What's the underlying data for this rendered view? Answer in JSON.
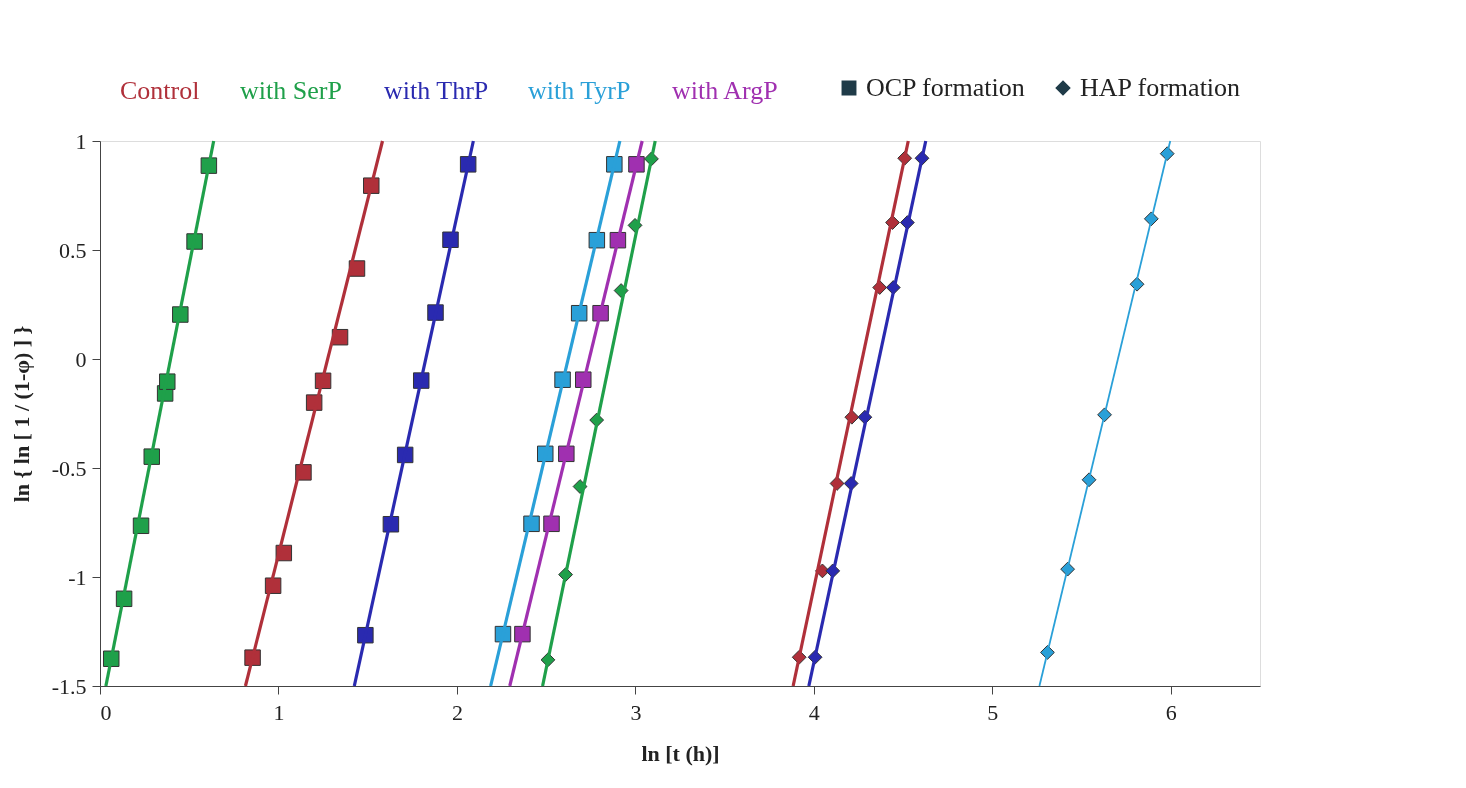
{
  "chart_data": {
    "type": "scatter",
    "xlabel": "ln [t (h)]",
    "ylabel": "ln { ln [ 1 / (1-φ) ] }",
    "xlim": [
      0,
      6.5
    ],
    "ylim": [
      -1.5,
      1
    ],
    "xticks": [
      0,
      1,
      2,
      3,
      4,
      5,
      6
    ],
    "yticks": [
      -1.5,
      -1,
      -0.5,
      0,
      0.5,
      1
    ],
    "grid": false,
    "legend": "top",
    "line_style": "solid",
    "annotations": [
      "OCP formation",
      "HAP formation"
    ],
    "series": [
      {
        "name": "Control",
        "color": "#b0303a",
        "marker": "square",
        "x": [
          0.855,
          0.97,
          1.03,
          1.14,
          1.2,
          1.25,
          1.345,
          1.44,
          1.52
        ],
        "values": [
          -1.37,
          -1.04,
          -0.89,
          -0.52,
          -0.2,
          -0.1,
          0.1,
          0.415,
          0.795
        ]
      },
      {
        "name": "with SerP",
        "color": "#1fa04a",
        "marker": "square",
        "x": [
          0.063,
          0.135,
          0.23,
          0.29,
          0.365,
          0.377,
          0.45,
          0.53,
          0.61
        ],
        "values": [
          -1.375,
          -1.1,
          -0.765,
          -0.448,
          -0.158,
          -0.104,
          0.204,
          0.539,
          0.887
        ]
      },
      {
        "name": "with ThrP",
        "color": "#2a2ab0",
        "marker": "square",
        "x": [
          1.487,
          1.63,
          1.71,
          1.8,
          1.88,
          1.964,
          2.063
        ],
        "values": [
          -1.267,
          -0.758,
          -0.44,
          -0.099,
          0.213,
          0.547,
          0.893
        ]
      },
      {
        "name": "with TyrP",
        "color": "#2aa0d8",
        "marker": "square",
        "x": [
          2.258,
          2.418,
          2.495,
          2.592,
          2.685,
          2.784,
          2.882
        ],
        "values": [
          -1.262,
          -0.756,
          -0.435,
          -0.095,
          0.21,
          0.545,
          0.893
        ]
      },
      {
        "name": "with ArgP",
        "color": "#a030b0",
        "marker": "square",
        "x": [
          2.367,
          2.53,
          2.613,
          2.708,
          2.805,
          2.902,
          3.006
        ],
        "values": [
          -1.262,
          -0.756,
          -0.435,
          -0.095,
          0.21,
          0.545,
          0.893
        ]
      },
      {
        "color": "#1fa04a",
        "marker": "diamond",
        "x": [
          2.51,
          2.609,
          2.69,
          2.783,
          2.92,
          2.998,
          3.09
        ],
        "values": [
          -1.38,
          -0.989,
          -0.585,
          -0.28,
          0.314,
          0.613,
          0.918
        ]
      },
      {
        "color": "#b0303a",
        "marker": "diamond",
        "x": [
          3.918,
          4.048,
          4.13,
          4.213,
          4.369,
          4.441,
          4.509
        ],
        "values": [
          -1.368,
          -0.972,
          -0.571,
          -0.267,
          0.328,
          0.626,
          0.921
        ]
      },
      {
        "color": "#2a2ab0",
        "marker": "diamond",
        "x": [
          4.007,
          4.106,
          4.209,
          4.286,
          4.445,
          4.524,
          4.606
        ],
        "values": [
          -1.368,
          -0.972,
          -0.571,
          -0.267,
          0.328,
          0.626,
          0.921
        ]
      },
      {
        "color": "#2aa0d8",
        "marker": "diamond",
        "x": [
          5.309,
          5.422,
          5.542,
          5.629,
          5.811,
          5.891,
          5.98
        ],
        "values": [
          -1.346,
          -0.964,
          -0.554,
          -0.256,
          0.343,
          0.643,
          0.942
        ]
      },
      {
        "type": "line",
        "color": "#b0303a",
        "marker": "none",
        "x": [
          0.815,
          1.583
        ],
        "values": [
          -1.5,
          1
        ]
      },
      {
        "type": "line",
        "color": "#1fa04a",
        "marker": "none",
        "x": [
          0.033,
          0.637
        ],
        "values": [
          -1.5,
          1
        ]
      },
      {
        "type": "line",
        "color": "#2a2ab0",
        "marker": "none",
        "x": [
          1.425,
          2.092
        ],
        "values": [
          -1.5,
          1
        ]
      },
      {
        "type": "line",
        "color": "#2aa0d8",
        "marker": "none",
        "x": [
          2.189,
          2.913
        ],
        "values": [
          -1.5,
          1
        ]
      },
      {
        "type": "line",
        "color": "#a030b0",
        "marker": "none",
        "x": [
          2.296,
          3.038
        ],
        "values": [
          -1.5,
          1
        ]
      },
      {
        "type": "line",
        "color": "#1fa04a",
        "marker": "none",
        "x": [
          2.48,
          3.111
        ],
        "values": [
          -1.5,
          1
        ]
      },
      {
        "type": "line",
        "color": "#b0303a",
        "marker": "none",
        "x": [
          3.884,
          4.529
        ],
        "values": [
          -1.5,
          1
        ]
      },
      {
        "type": "line",
        "color": "#2a2ab0",
        "marker": "none",
        "x": [
          3.972,
          4.627
        ],
        "values": [
          -1.5,
          1
        ]
      },
      {
        "type": "line",
        "color": "#2aa0d8",
        "marker": "none",
        "x": [
          5.264,
          5.997
        ],
        "values": [
          -1.5,
          1
        ]
      }
    ]
  }
}
